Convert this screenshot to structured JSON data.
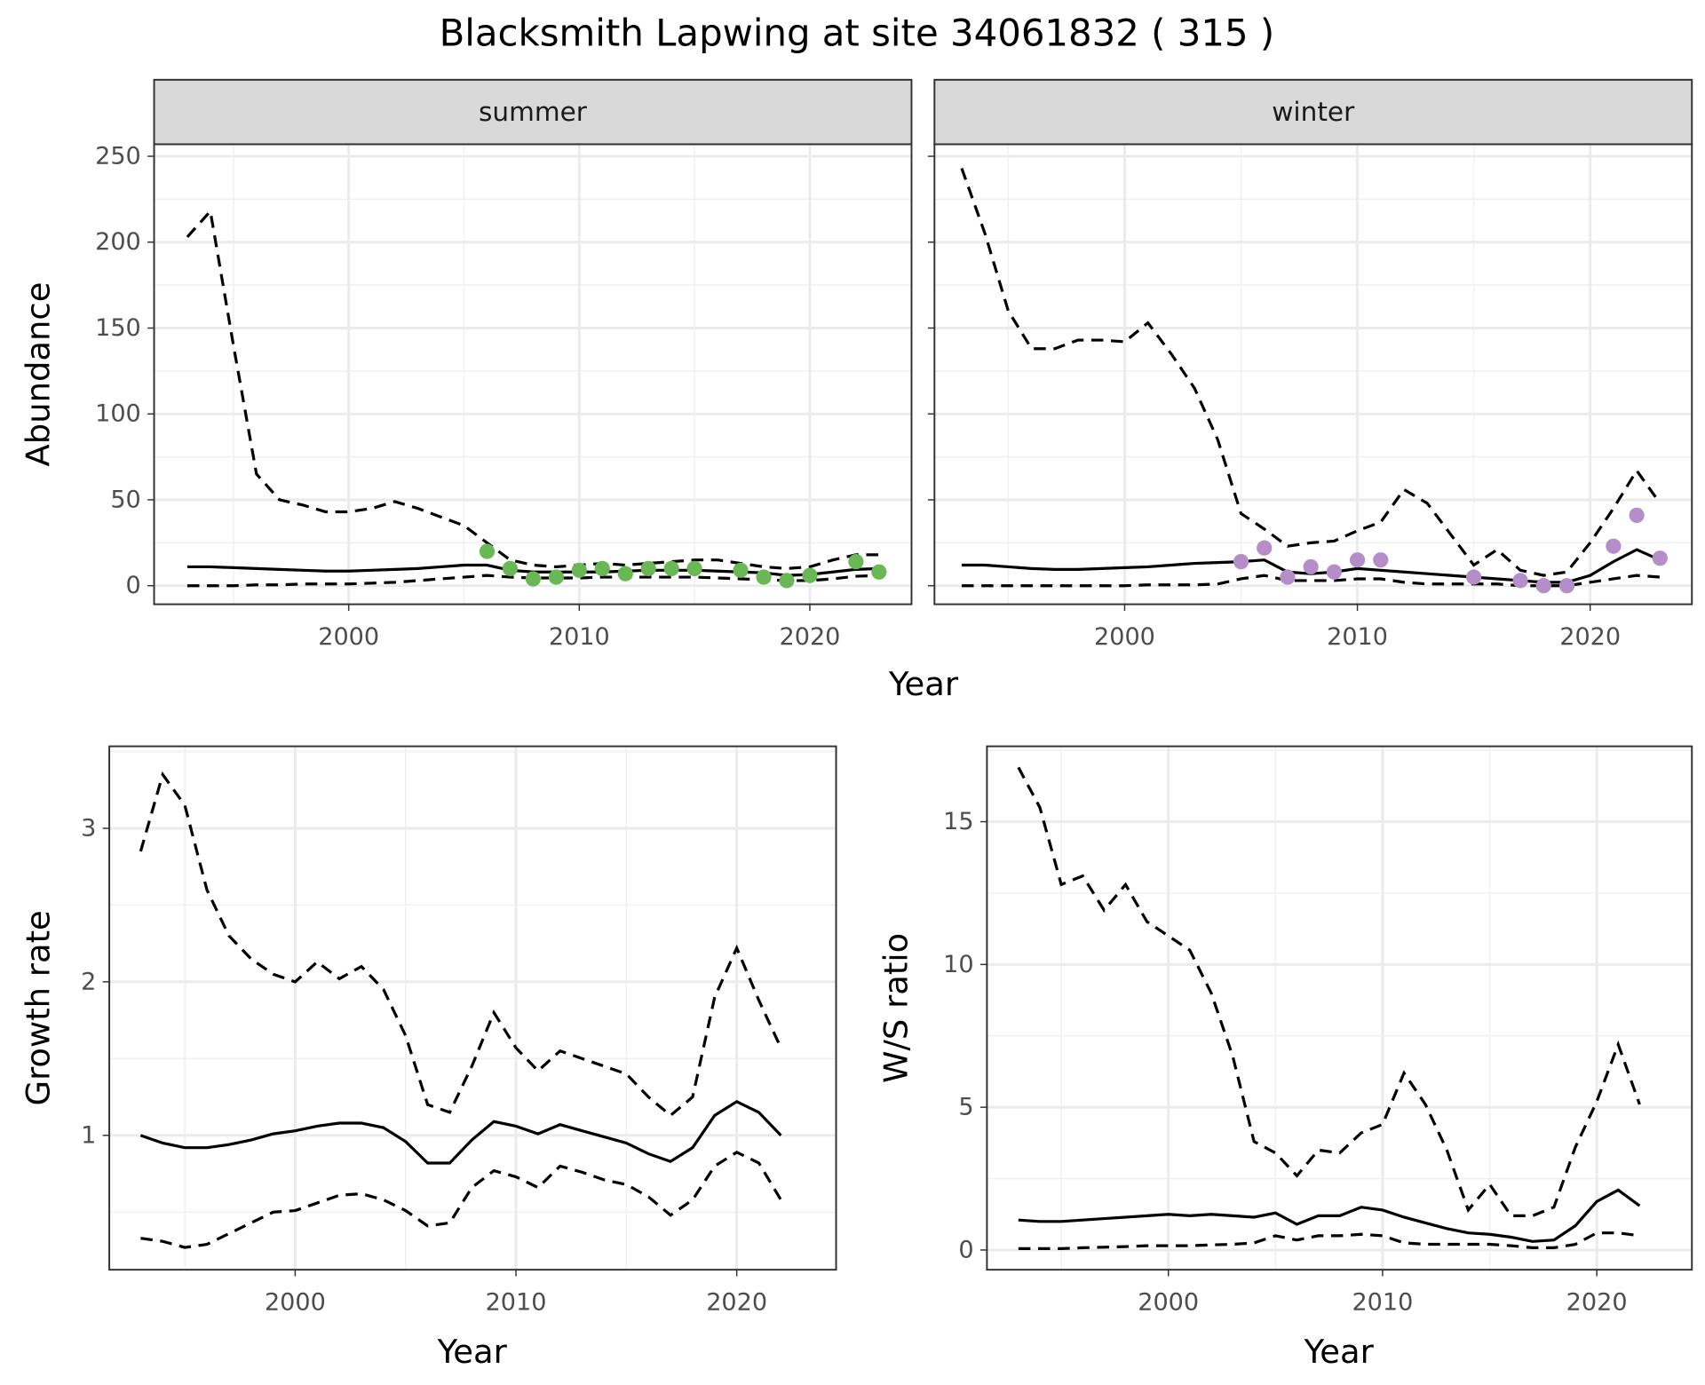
{
  "title": "Blacksmith Lapwing at site 34061832 ( 315 )",
  "chart_data": [
    {
      "type": "line",
      "strip": "summer",
      "ylabel": "Abundance",
      "xlabel": "Year",
      "xlim": [
        1991.56,
        2024.41
      ],
      "ylim": [
        -10.8,
        257
      ],
      "xticks": [
        2000,
        2010,
        2020
      ],
      "yticks": [
        0,
        50,
        100,
        150,
        200,
        250
      ],
      "grid": true,
      "show_ytick_labels": true,
      "x": [
        1993,
        1994,
        1995,
        1996,
        1997,
        1998,
        1999,
        2000,
        2001,
        2002,
        2003,
        2004,
        2005,
        2006,
        2007,
        2008,
        2009,
        2010,
        2011,
        2012,
        2013,
        2014,
        2015,
        2016,
        2017,
        2018,
        2019,
        2020,
        2021,
        2022,
        2023
      ],
      "series": [
        {
          "color": "#000000",
          "dash": false,
          "values": [
            11,
            11,
            10.5,
            10,
            9.5,
            9,
            8.5,
            8.5,
            9,
            9.5,
            10,
            11,
            12,
            12,
            9,
            8,
            8,
            8,
            8,
            8.5,
            9,
            9,
            9,
            8.5,
            8,
            7.5,
            6,
            6.5,
            8,
            9.5,
            10
          ]
        },
        {
          "color": "#000000",
          "dash": true,
          "values": [
            0,
            0,
            0,
            0.5,
            0.5,
            1,
            1,
            1,
            1.5,
            2,
            3,
            4,
            5,
            6,
            5,
            4.5,
            4.5,
            4.5,
            5,
            5,
            5,
            5,
            5,
            4.5,
            4,
            3.5,
            3,
            3,
            4,
            5.5,
            6
          ]
        },
        {
          "color": "#000000",
          "dash": true,
          "values": [
            203,
            218,
            140,
            65,
            50,
            47,
            43,
            43,
            45,
            49,
            45,
            40,
            35,
            25,
            15,
            12,
            11,
            12,
            13,
            12,
            13,
            14,
            15,
            15,
            13,
            11,
            10,
            11,
            15,
            18,
            18
          ]
        },
        {
          "color": "#6ab855",
          "mark": "point",
          "x": [
            2006,
            2007,
            2008,
            2009,
            2010,
            2011,
            2012,
            2013,
            2014,
            2015,
            2017,
            2018,
            2019,
            2020,
            2022,
            2023
          ],
          "values": [
            20,
            10,
            4,
            5,
            9,
            10,
            7,
            10,
            10,
            10,
            9,
            5,
            3,
            6,
            14,
            8
          ]
        }
      ]
    },
    {
      "type": "line",
      "strip": "winter",
      "xlim": [
        1991.83,
        2024.37
      ],
      "ylim": [
        -10.8,
        257
      ],
      "xticks": [
        2000,
        2010,
        2020
      ],
      "yticks": [
        0,
        50,
        100,
        150,
        200,
        250
      ],
      "grid": true,
      "show_ytick_labels": false,
      "x": [
        1993,
        1994,
        1995,
        1996,
        1997,
        1998,
        1999,
        2000,
        2001,
        2002,
        2003,
        2004,
        2005,
        2006,
        2007,
        2008,
        2009,
        2010,
        2011,
        2012,
        2013,
        2014,
        2015,
        2016,
        2017,
        2018,
        2019,
        2020,
        2021,
        2022,
        2023
      ],
      "series": [
        {
          "color": "#000000",
          "dash": false,
          "values": [
            12,
            12,
            11,
            10,
            9.5,
            9.5,
            10,
            10.5,
            11,
            12,
            13,
            13.5,
            14,
            15,
            8,
            7,
            8,
            10,
            9,
            8,
            7,
            6,
            5,
            4,
            3,
            2,
            2,
            6,
            14,
            21,
            15
          ]
        },
        {
          "color": "#000000",
          "dash": true,
          "values": [
            0,
            0,
            0,
            0,
            0,
            0,
            0,
            0,
            0.5,
            0.5,
            0.5,
            1,
            4,
            6,
            3,
            3,
            3,
            4,
            4,
            2,
            1,
            1,
            1,
            1,
            0,
            0,
            0,
            2,
            4,
            6,
            5
          ]
        },
        {
          "color": "#000000",
          "dash": true,
          "values": [
            243,
            205,
            160,
            138,
            138,
            143,
            143,
            142,
            153,
            135,
            115,
            85,
            42,
            33,
            23,
            25,
            26,
            32,
            37,
            56,
            48,
            30,
            12,
            21,
            9,
            6,
            8,
            25,
            45,
            67,
            48
          ]
        },
        {
          "color": "#b48dc9",
          "mark": "point",
          "x": [
            2005,
            2006,
            2007,
            2008,
            2009,
            2010,
            2011,
            2015,
            2017,
            2018,
            2019,
            2021,
            2022,
            2023
          ],
          "values": [
            14,
            22,
            5,
            11,
            8,
            15,
            15,
            5,
            3,
            0,
            0,
            23,
            41,
            16
          ]
        }
      ]
    },
    {
      "type": "line",
      "ylabel": "Growth rate",
      "xlabel": "Year",
      "xlim": [
        1991.58,
        2024.5
      ],
      "ylim": [
        0.125,
        3.534
      ],
      "xticks": [
        2000,
        2010,
        2020
      ],
      "yticks": [
        1,
        2,
        3
      ],
      "grid": true,
      "show_ytick_labels": true,
      "x": [
        1993,
        1994,
        1995,
        1996,
        1997,
        1998,
        1999,
        2000,
        2001,
        2002,
        2003,
        2004,
        2005,
        2006,
        2007,
        2008,
        2009,
        2010,
        2011,
        2012,
        2013,
        2014,
        2015,
        2016,
        2017,
        2018,
        2019,
        2020,
        2021,
        2022
      ],
      "series": [
        {
          "color": "#000000",
          "dash": false,
          "values": [
            1.0,
            0.95,
            0.92,
            0.92,
            0.94,
            0.97,
            1.01,
            1.03,
            1.06,
            1.08,
            1.08,
            1.05,
            0.96,
            0.82,
            0.82,
            0.97,
            1.09,
            1.06,
            1.01,
            1.07,
            1.03,
            0.99,
            0.95,
            0.88,
            0.83,
            0.92,
            1.13,
            1.22,
            1.15,
            1.0
          ]
        },
        {
          "color": "#000000",
          "dash": true,
          "values": [
            0.33,
            0.31,
            0.27,
            0.29,
            0.36,
            0.43,
            0.5,
            0.51,
            0.56,
            0.61,
            0.62,
            0.58,
            0.51,
            0.41,
            0.43,
            0.66,
            0.77,
            0.73,
            0.66,
            0.8,
            0.76,
            0.71,
            0.68,
            0.6,
            0.48,
            0.58,
            0.8,
            0.89,
            0.82,
            0.58
          ]
        },
        {
          "color": "#000000",
          "dash": true,
          "values": [
            2.85,
            3.35,
            3.15,
            2.6,
            2.3,
            2.15,
            2.05,
            2.0,
            2.13,
            2.02,
            2.1,
            1.95,
            1.65,
            1.2,
            1.15,
            1.45,
            1.8,
            1.57,
            1.42,
            1.55,
            1.5,
            1.45,
            1.4,
            1.25,
            1.13,
            1.25,
            1.9,
            2.22,
            1.88,
            1.57
          ]
        }
      ]
    },
    {
      "type": "line",
      "ylabel": "W/S ratio",
      "xlabel": "Year",
      "xlim": [
        1991.53,
        2024.44
      ],
      "ylim": [
        -0.69,
        17.64
      ],
      "xticks": [
        2000,
        2010,
        2020
      ],
      "yticks": [
        0,
        5,
        10,
        15
      ],
      "grid": true,
      "show_ytick_labels": true,
      "x": [
        1993,
        1994,
        1995,
        1996,
        1997,
        1998,
        1999,
        2000,
        2001,
        2002,
        2003,
        2004,
        2005,
        2006,
        2007,
        2008,
        2009,
        2010,
        2011,
        2012,
        2013,
        2014,
        2015,
        2016,
        2017,
        2018,
        2019,
        2020,
        2021,
        2022
      ],
      "series": [
        {
          "color": "#000000",
          "dash": false,
          "values": [
            1.05,
            1.0,
            1.0,
            1.05,
            1.1,
            1.15,
            1.2,
            1.25,
            1.2,
            1.25,
            1.2,
            1.15,
            1.3,
            0.9,
            1.2,
            1.2,
            1.5,
            1.4,
            1.15,
            0.95,
            0.75,
            0.6,
            0.55,
            0.45,
            0.3,
            0.35,
            0.85,
            1.7,
            2.1,
            1.55
          ]
        },
        {
          "color": "#000000",
          "dash": true,
          "values": [
            0.05,
            0.05,
            0.05,
            0.08,
            0.1,
            0.12,
            0.15,
            0.15,
            0.15,
            0.18,
            0.2,
            0.25,
            0.5,
            0.35,
            0.5,
            0.5,
            0.55,
            0.5,
            0.25,
            0.2,
            0.2,
            0.2,
            0.2,
            0.15,
            0.08,
            0.08,
            0.2,
            0.6,
            0.6,
            0.5
          ]
        },
        {
          "color": "#000000",
          "dash": true,
          "values": [
            16.9,
            15.5,
            12.8,
            13.1,
            11.9,
            12.8,
            11.5,
            11.0,
            10.5,
            9.0,
            6.8,
            3.8,
            3.4,
            2.6,
            3.5,
            3.4,
            4.1,
            4.4,
            6.2,
            5.1,
            3.5,
            1.4,
            2.3,
            1.2,
            1.2,
            1.5,
            3.6,
            5.2,
            7.2,
            5.1
          ]
        }
      ]
    }
  ]
}
